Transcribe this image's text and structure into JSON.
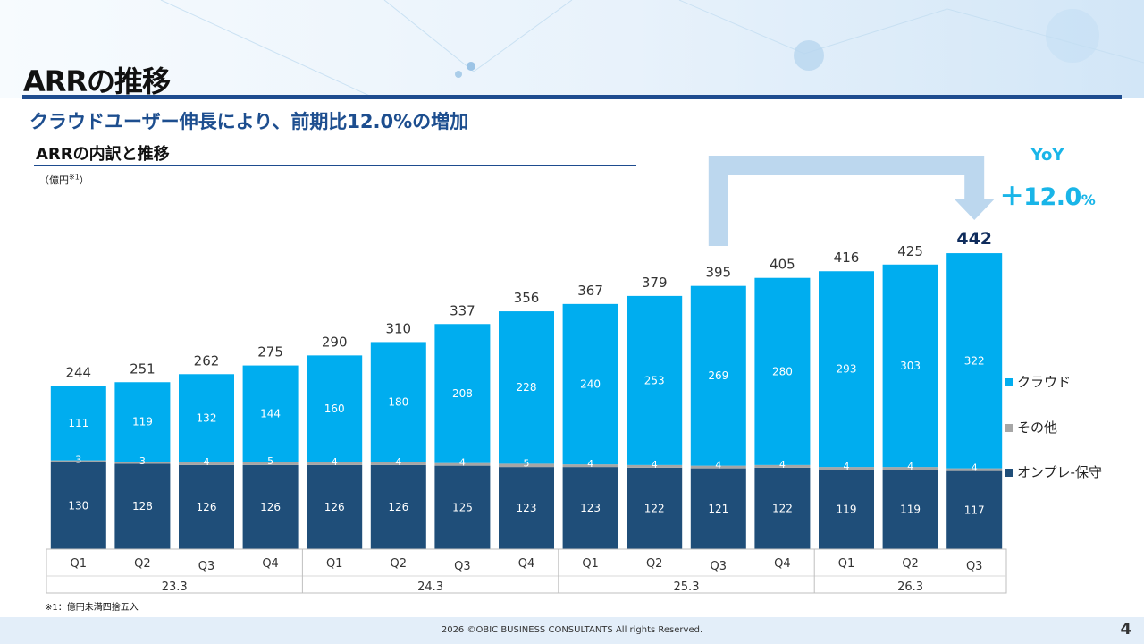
{
  "page": {
    "title": "ARRの推移",
    "subtitle": "クラウドユーザー伸長により、前期比12.0%の増加",
    "section_title": "ARRの内訳と推移",
    "unit_label": "（億円",
    "unit_note_mark": "※1",
    "unit_close": "）",
    "yoy_label": "YoY",
    "yoy_value": "＋12.0",
    "yoy_unit": "%",
    "footnote": "※1：億円未満四捨五入",
    "copyright": "2026  ©OBIC BUSINESS CONSULTANTS All rights Reserved.",
    "page_number": "4"
  },
  "colors": {
    "cloud": "#00adef",
    "other": "#a6a6a6",
    "onprem": "#1f4e79",
    "accent": "#19b5e8",
    "rule": "#1e4c8f"
  },
  "chart_data": {
    "type": "bar",
    "stacked": true,
    "categories": [
      "Q1",
      "Q2",
      "Q3",
      "Q4",
      "Q1",
      "Q2",
      "Q3",
      "Q4",
      "Q1",
      "Q2",
      "Q3",
      "Q4",
      "Q1",
      "Q2",
      "Q3"
    ],
    "groups": [
      {
        "label": "23.3",
        "count": 4
      },
      {
        "label": "24.3",
        "count": 4
      },
      {
        "label": "25.3",
        "count": 4
      },
      {
        "label": "26.3",
        "count": 3
      }
    ],
    "series": [
      {
        "name": "オンプレ-保守",
        "color": "#1f4e79",
        "values": [
          130,
          128,
          126,
          126,
          126,
          126,
          125,
          123,
          123,
          122,
          121,
          122,
          119,
          119,
          117
        ]
      },
      {
        "name": "その他",
        "color": "#a6a6a6",
        "values": [
          3,
          3,
          4,
          5,
          4,
          4,
          4,
          5,
          4,
          4,
          4,
          4,
          4,
          4,
          4
        ]
      },
      {
        "name": "クラウド",
        "color": "#00adef",
        "values": [
          111,
          119,
          132,
          144,
          160,
          180,
          208,
          228,
          240,
          253,
          269,
          280,
          293,
          303,
          322
        ]
      }
    ],
    "totals": [
      244,
      251,
      262,
      275,
      290,
      310,
      337,
      356,
      367,
      379,
      395,
      405,
      416,
      425,
      442
    ],
    "legend": [
      "クラウド",
      "その他",
      "オンプレ-保守"
    ],
    "legend_position": "right",
    "grid": false,
    "ylim": [
      0,
      450
    ],
    "highlight": {
      "from_index": 10,
      "to_index": 14
    }
  }
}
